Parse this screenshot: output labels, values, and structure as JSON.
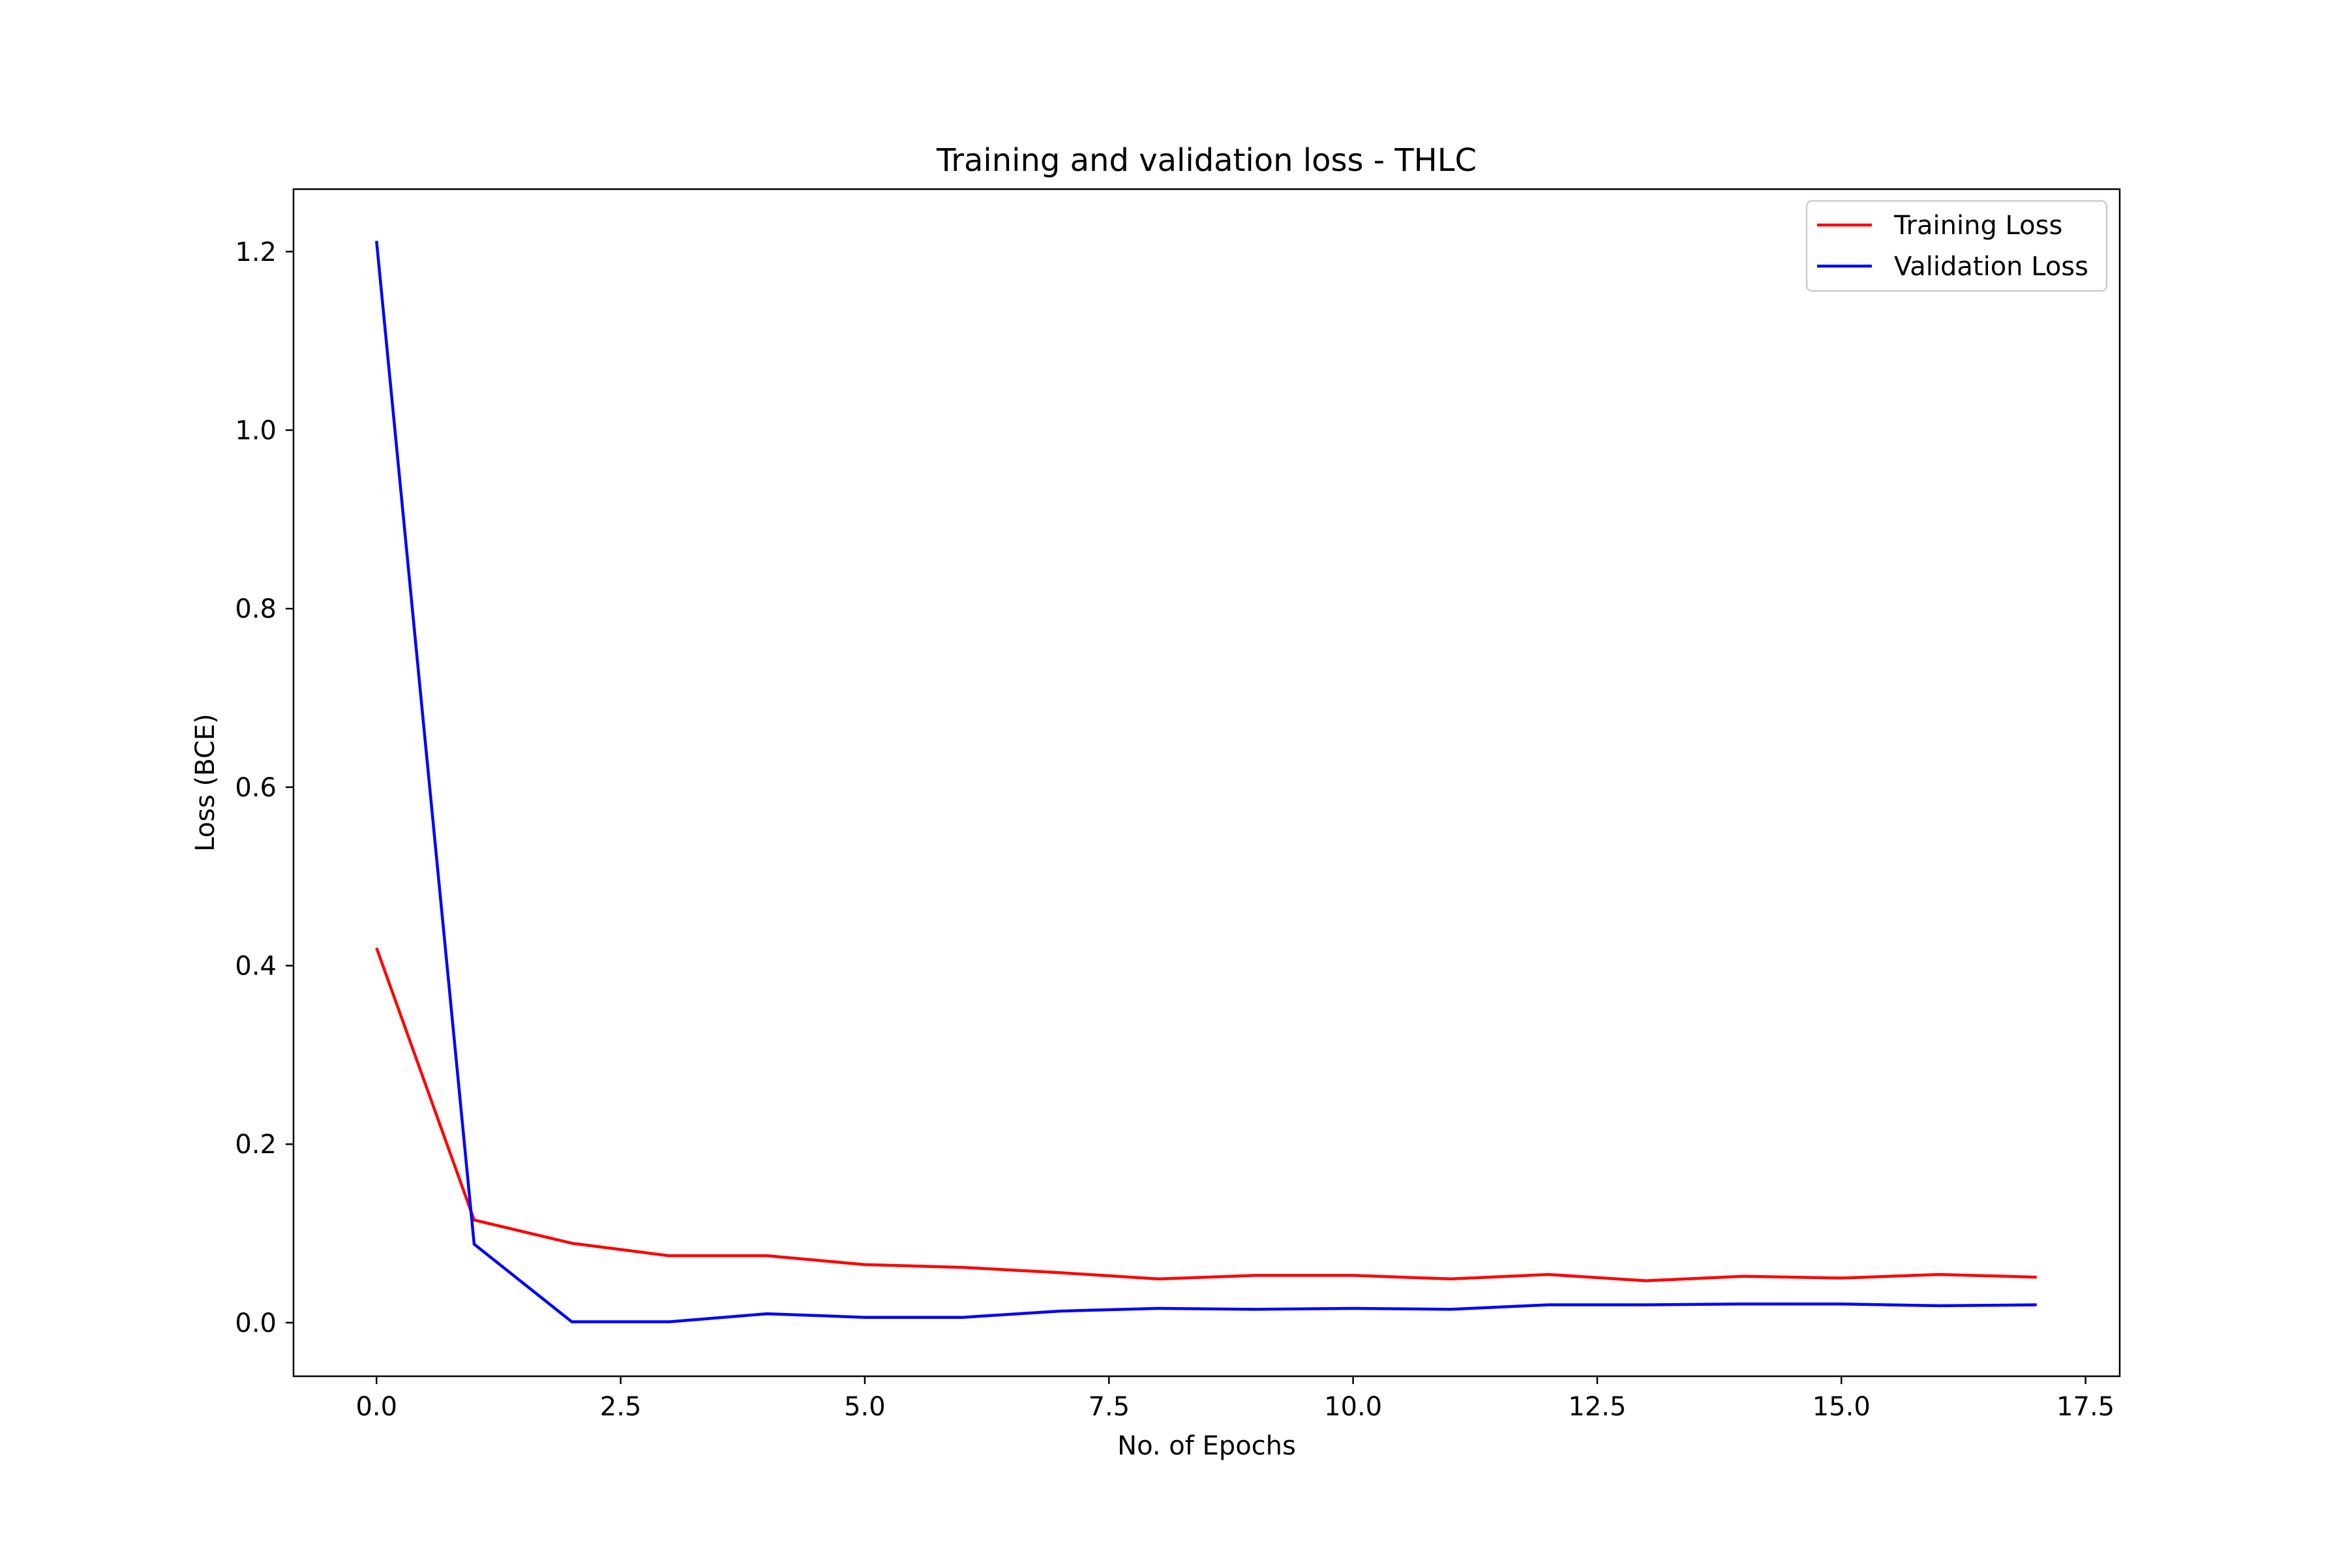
{
  "chart_data": {
    "type": "line",
    "title": "Training and validation loss - THLC",
    "xlabel": "No. of Epochs",
    "ylabel": "Loss (BCE)",
    "xlim": [
      -0.85,
      17.85
    ],
    "ylim": [
      -0.06,
      1.27
    ],
    "xticks": [
      0.0,
      2.5,
      5.0,
      7.5,
      10.0,
      12.5,
      15.0,
      17.5
    ],
    "xtick_labels": [
      "0.0",
      "2.5",
      "5.0",
      "7.5",
      "10.0",
      "12.5",
      "15.0",
      "17.5"
    ],
    "yticks": [
      0.0,
      0.2,
      0.4,
      0.6,
      0.8,
      1.0,
      1.2
    ],
    "ytick_labels": [
      "0.0",
      "0.2",
      "0.4",
      "0.6",
      "0.8",
      "1.0",
      "1.2"
    ],
    "grid": false,
    "legend_position": "upper right",
    "x": [
      0,
      1,
      2,
      3,
      4,
      5,
      6,
      7,
      8,
      9,
      10,
      11,
      12,
      13,
      14,
      15,
      16,
      17
    ],
    "series": [
      {
        "name": "Training Loss",
        "color": "#ff0000",
        "values": [
          0.42,
          0.115,
          0.089,
          0.075,
          0.075,
          0.065,
          0.062,
          0.056,
          0.049,
          0.053,
          0.053,
          0.049,
          0.054,
          0.047,
          0.052,
          0.05,
          0.054,
          0.051
        ]
      },
      {
        "name": "Validation Loss",
        "color": "#0000ff",
        "values": [
          1.212,
          0.088,
          0.001,
          0.001,
          0.01,
          0.006,
          0.006,
          0.013,
          0.016,
          0.015,
          0.016,
          0.015,
          0.02,
          0.02,
          0.021,
          0.021,
          0.019,
          0.02
        ]
      }
    ]
  }
}
